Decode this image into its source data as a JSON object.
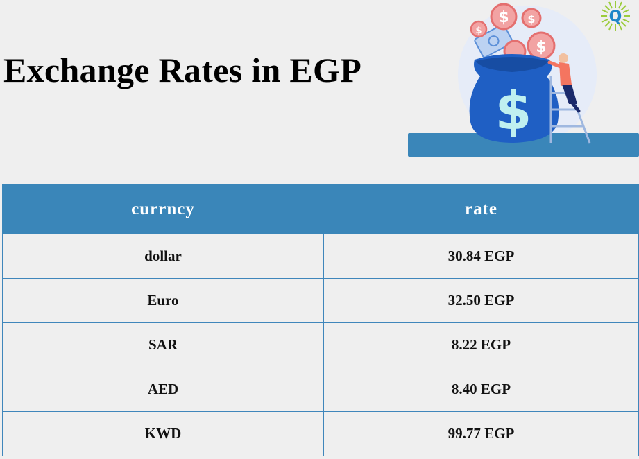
{
  "page": {
    "title": "Exchange Rates in EGP"
  },
  "illustration": {
    "icon": "money-bag-icon",
    "logo_icon": "q-logo-icon",
    "logo_letter": "Q",
    "colors": {
      "accent": "#3a86b9",
      "bag": "#1f5fc4",
      "coin": "#f08a8a",
      "person_shirt": "#f47560"
    }
  },
  "table": {
    "headers": [
      "currncy",
      "rate"
    ],
    "rows": [
      {
        "currency": "dollar",
        "rate": "30.84 EGP"
      },
      {
        "currency": "Euro",
        "rate": "32.50 EGP"
      },
      {
        "currency": "SAR",
        "rate": "8.22 EGP"
      },
      {
        "currency": "AED",
        "rate": "8.40 EGP"
      },
      {
        "currency": "KWD",
        "rate": "99.77 EGP"
      }
    ]
  },
  "colors": {
    "header_bg": "#3a86b9",
    "header_text": "#ffffff",
    "border": "#3f86bb",
    "page_bg": "#efefef"
  }
}
